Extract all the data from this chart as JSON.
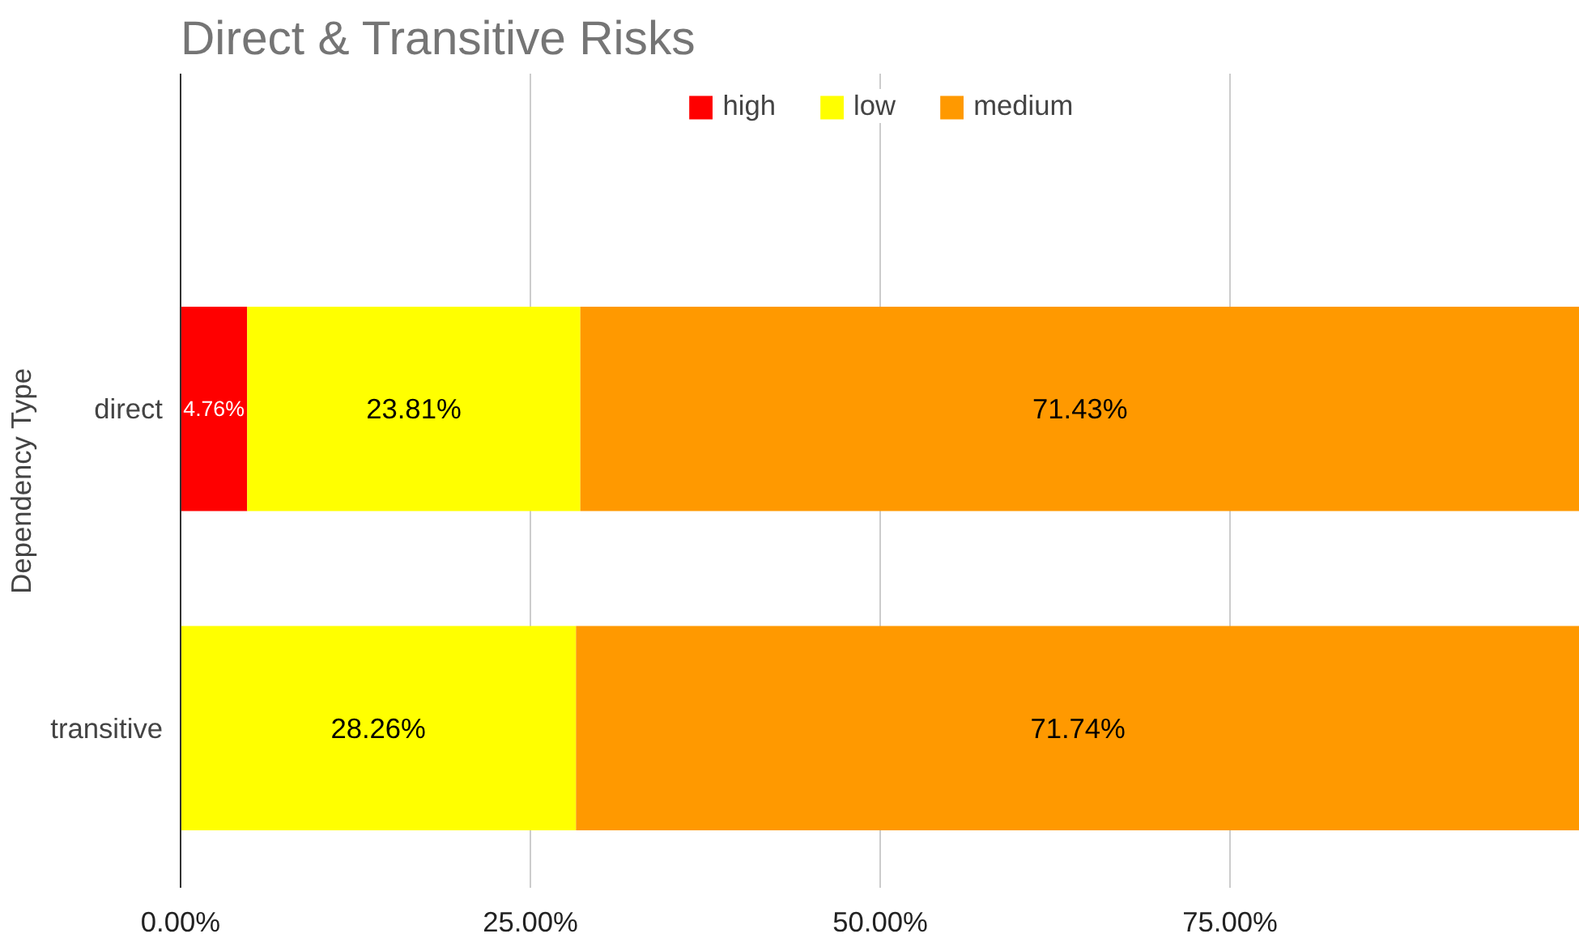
{
  "chart_data": {
    "type": "bar",
    "orientation": "horizontal",
    "stacked": true,
    "title": "Direct & Transitive Risks",
    "ylabel": "Dependency Type",
    "categories": [
      "direct",
      "transitive"
    ],
    "series": [
      {
        "name": "high",
        "color": "#ff0000",
        "values": [
          4.76,
          0
        ],
        "value_labels": [
          "4.76%",
          null
        ]
      },
      {
        "name": "low",
        "color": "#ffff00",
        "values": [
          23.81,
          28.26
        ],
        "value_labels": [
          "23.81%",
          "28.26%"
        ]
      },
      {
        "name": "medium",
        "color": "#ff9900",
        "values": [
          71.43,
          71.74
        ],
        "value_labels": [
          "71.43%",
          "71.74%"
        ]
      }
    ],
    "xlim": [
      0,
      100
    ],
    "xticks": [
      {
        "value": 0,
        "label": "0.00%"
      },
      {
        "value": 25,
        "label": "25.00%"
      },
      {
        "value": 50,
        "label": "50.00%"
      },
      {
        "value": 75,
        "label": "75.00%"
      }
    ],
    "grid": "x",
    "legend": "top"
  }
}
